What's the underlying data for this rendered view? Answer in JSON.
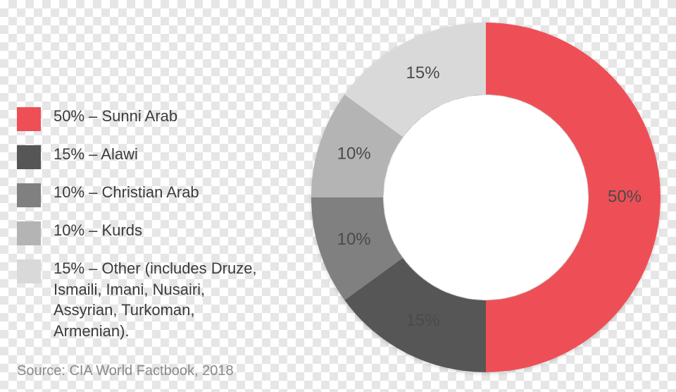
{
  "chart": {
    "type": "donut",
    "outer_radius": 248,
    "inner_radius": 146,
    "center_fill": "#ffffff",
    "label_fontsize": 24,
    "label_color": "#4a4a4a",
    "slices": [
      {
        "key": "sunni",
        "value": 50,
        "label": "50%",
        "color": "#ee4f57"
      },
      {
        "key": "alawi",
        "value": 15,
        "label": "15%",
        "color": "#565656"
      },
      {
        "key": "christian",
        "value": 10,
        "label": "10%",
        "color": "#808080"
      },
      {
        "key": "kurds",
        "value": 10,
        "label": "10%",
        "color": "#b4b4b4"
      },
      {
        "key": "other",
        "value": 15,
        "label": "15%",
        "color": "#d9d9d9"
      }
    ]
  },
  "legend": {
    "swatch_size": 34,
    "fontsize": 22,
    "text_color": "#3a3a3a",
    "items": [
      {
        "color": "#ee4f57",
        "text": "50% – Sunni Arab"
      },
      {
        "color": "#565656",
        "text": "15% – Alawi"
      },
      {
        "color": "#808080",
        "text": "10% – Christian Arab"
      },
      {
        "color": "#b4b4b4",
        "text": "10% – Kurds"
      },
      {
        "color": "#d9d9d9",
        "text": "15% – Other (includes Druze, Ismaili, Imani, Nusairi, Assyrian, Turkoman, Armenian)."
      }
    ]
  },
  "source": "Source: CIA World Factbook, 2018"
}
